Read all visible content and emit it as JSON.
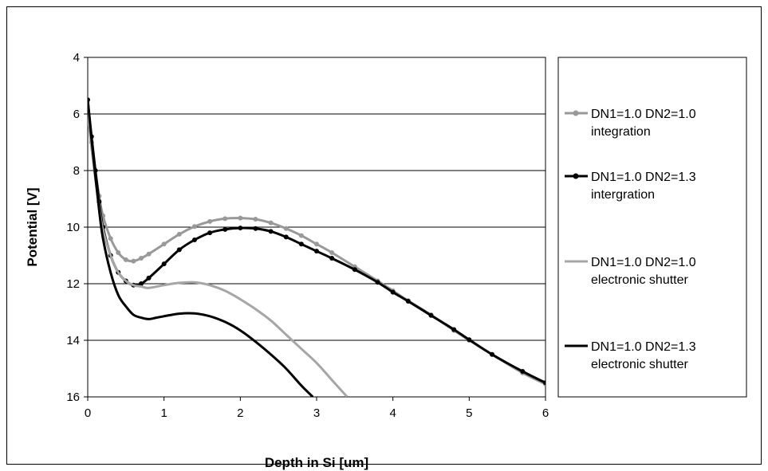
{
  "chart_data": {
    "type": "line",
    "title": "",
    "xlabel": "Depth in Si [um]",
    "ylabel": "Potential [V]",
    "xlim": [
      0,
      6
    ],
    "ylim": [
      4,
      16
    ],
    "y_inverted": true,
    "x_ticks": [
      "0",
      "1",
      "2",
      "3",
      "4",
      "5",
      "6"
    ],
    "y_ticks": [
      "4",
      "6",
      "8",
      "10",
      "12",
      "14",
      "16"
    ],
    "grid": "horizontal",
    "legend_position": "right",
    "series": [
      {
        "name_lines": [
          "DN1=1.0 DN2=1.0",
          "integration"
        ],
        "color": "#999999",
        "markers": true,
        "x": [
          0,
          0.05,
          0.1,
          0.15,
          0.2,
          0.3,
          0.4,
          0.5,
          0.6,
          0.7,
          0.8,
          1.0,
          1.2,
          1.4,
          1.6,
          1.8,
          2.0,
          2.2,
          2.4,
          2.6,
          2.8,
          3.0,
          3.2,
          3.5,
          3.8,
          4.0,
          4.2,
          4.5,
          4.8,
          5.0,
          5.3,
          5.7,
          6.0
        ],
        "y": [
          6.0,
          7.0,
          8.0,
          8.9,
          9.6,
          10.4,
          10.9,
          11.15,
          11.2,
          11.1,
          10.95,
          10.6,
          10.25,
          9.98,
          9.8,
          9.7,
          9.68,
          9.72,
          9.85,
          10.05,
          10.3,
          10.6,
          10.9,
          11.4,
          11.9,
          12.25,
          12.6,
          13.1,
          13.65,
          14.0,
          14.5,
          15.15,
          15.55
        ]
      },
      {
        "name_lines": [
          "DN1=1.0 DN2=1.3",
          "intergration"
        ],
        "color": "#000000",
        "markers": true,
        "x": [
          0,
          0.05,
          0.1,
          0.15,
          0.2,
          0.3,
          0.4,
          0.5,
          0.6,
          0.7,
          0.8,
          1.0,
          1.2,
          1.4,
          1.6,
          1.8,
          2.0,
          2.2,
          2.4,
          2.6,
          2.8,
          3.0,
          3.2,
          3.5,
          3.8,
          4.0,
          4.2,
          4.5,
          4.8,
          5.0,
          5.3,
          5.7,
          6.0
        ],
        "y": [
          5.5,
          6.8,
          8.0,
          9.1,
          10.0,
          11.0,
          11.6,
          11.9,
          12.05,
          12.0,
          11.8,
          11.3,
          10.8,
          10.45,
          10.2,
          10.08,
          10.03,
          10.05,
          10.15,
          10.35,
          10.6,
          10.85,
          11.1,
          11.5,
          11.95,
          12.3,
          12.62,
          13.12,
          13.62,
          13.98,
          14.5,
          15.1,
          15.5
        ]
      },
      {
        "name_lines": [
          "DN1=1.0 DN2=1.0",
          "electronic shutter"
        ],
        "color": "#a6a6a6",
        "markers": false,
        "x": [
          0,
          0.05,
          0.1,
          0.15,
          0.2,
          0.3,
          0.4,
          0.5,
          0.6,
          0.7,
          0.8,
          1.0,
          1.2,
          1.4,
          1.6,
          1.8,
          2.0,
          2.2,
          2.4,
          2.6,
          2.8,
          3.0,
          3.2,
          3.4
        ],
        "y": [
          6.0,
          7.2,
          8.3,
          9.3,
          10.1,
          11.0,
          11.6,
          11.9,
          12.05,
          12.1,
          12.15,
          12.05,
          11.97,
          11.95,
          12.05,
          12.25,
          12.55,
          12.9,
          13.3,
          13.8,
          14.3,
          14.8,
          15.4,
          16.0
        ]
      },
      {
        "name_lines": [
          "DN1=1.0 DN2=1.3",
          "electronic shutter"
        ],
        "color": "#000000",
        "markers": false,
        "x": [
          0,
          0.05,
          0.1,
          0.15,
          0.2,
          0.3,
          0.4,
          0.5,
          0.6,
          0.7,
          0.8,
          0.9,
          1.0,
          1.2,
          1.4,
          1.6,
          1.8,
          2.0,
          2.2,
          2.4,
          2.6,
          2.8,
          2.95
        ],
        "y": [
          5.5,
          6.9,
          8.2,
          9.4,
          10.4,
          11.6,
          12.4,
          12.8,
          13.1,
          13.2,
          13.25,
          13.2,
          13.15,
          13.06,
          13.05,
          13.15,
          13.35,
          13.65,
          14.05,
          14.5,
          15.0,
          15.6,
          16.0
        ]
      }
    ]
  }
}
